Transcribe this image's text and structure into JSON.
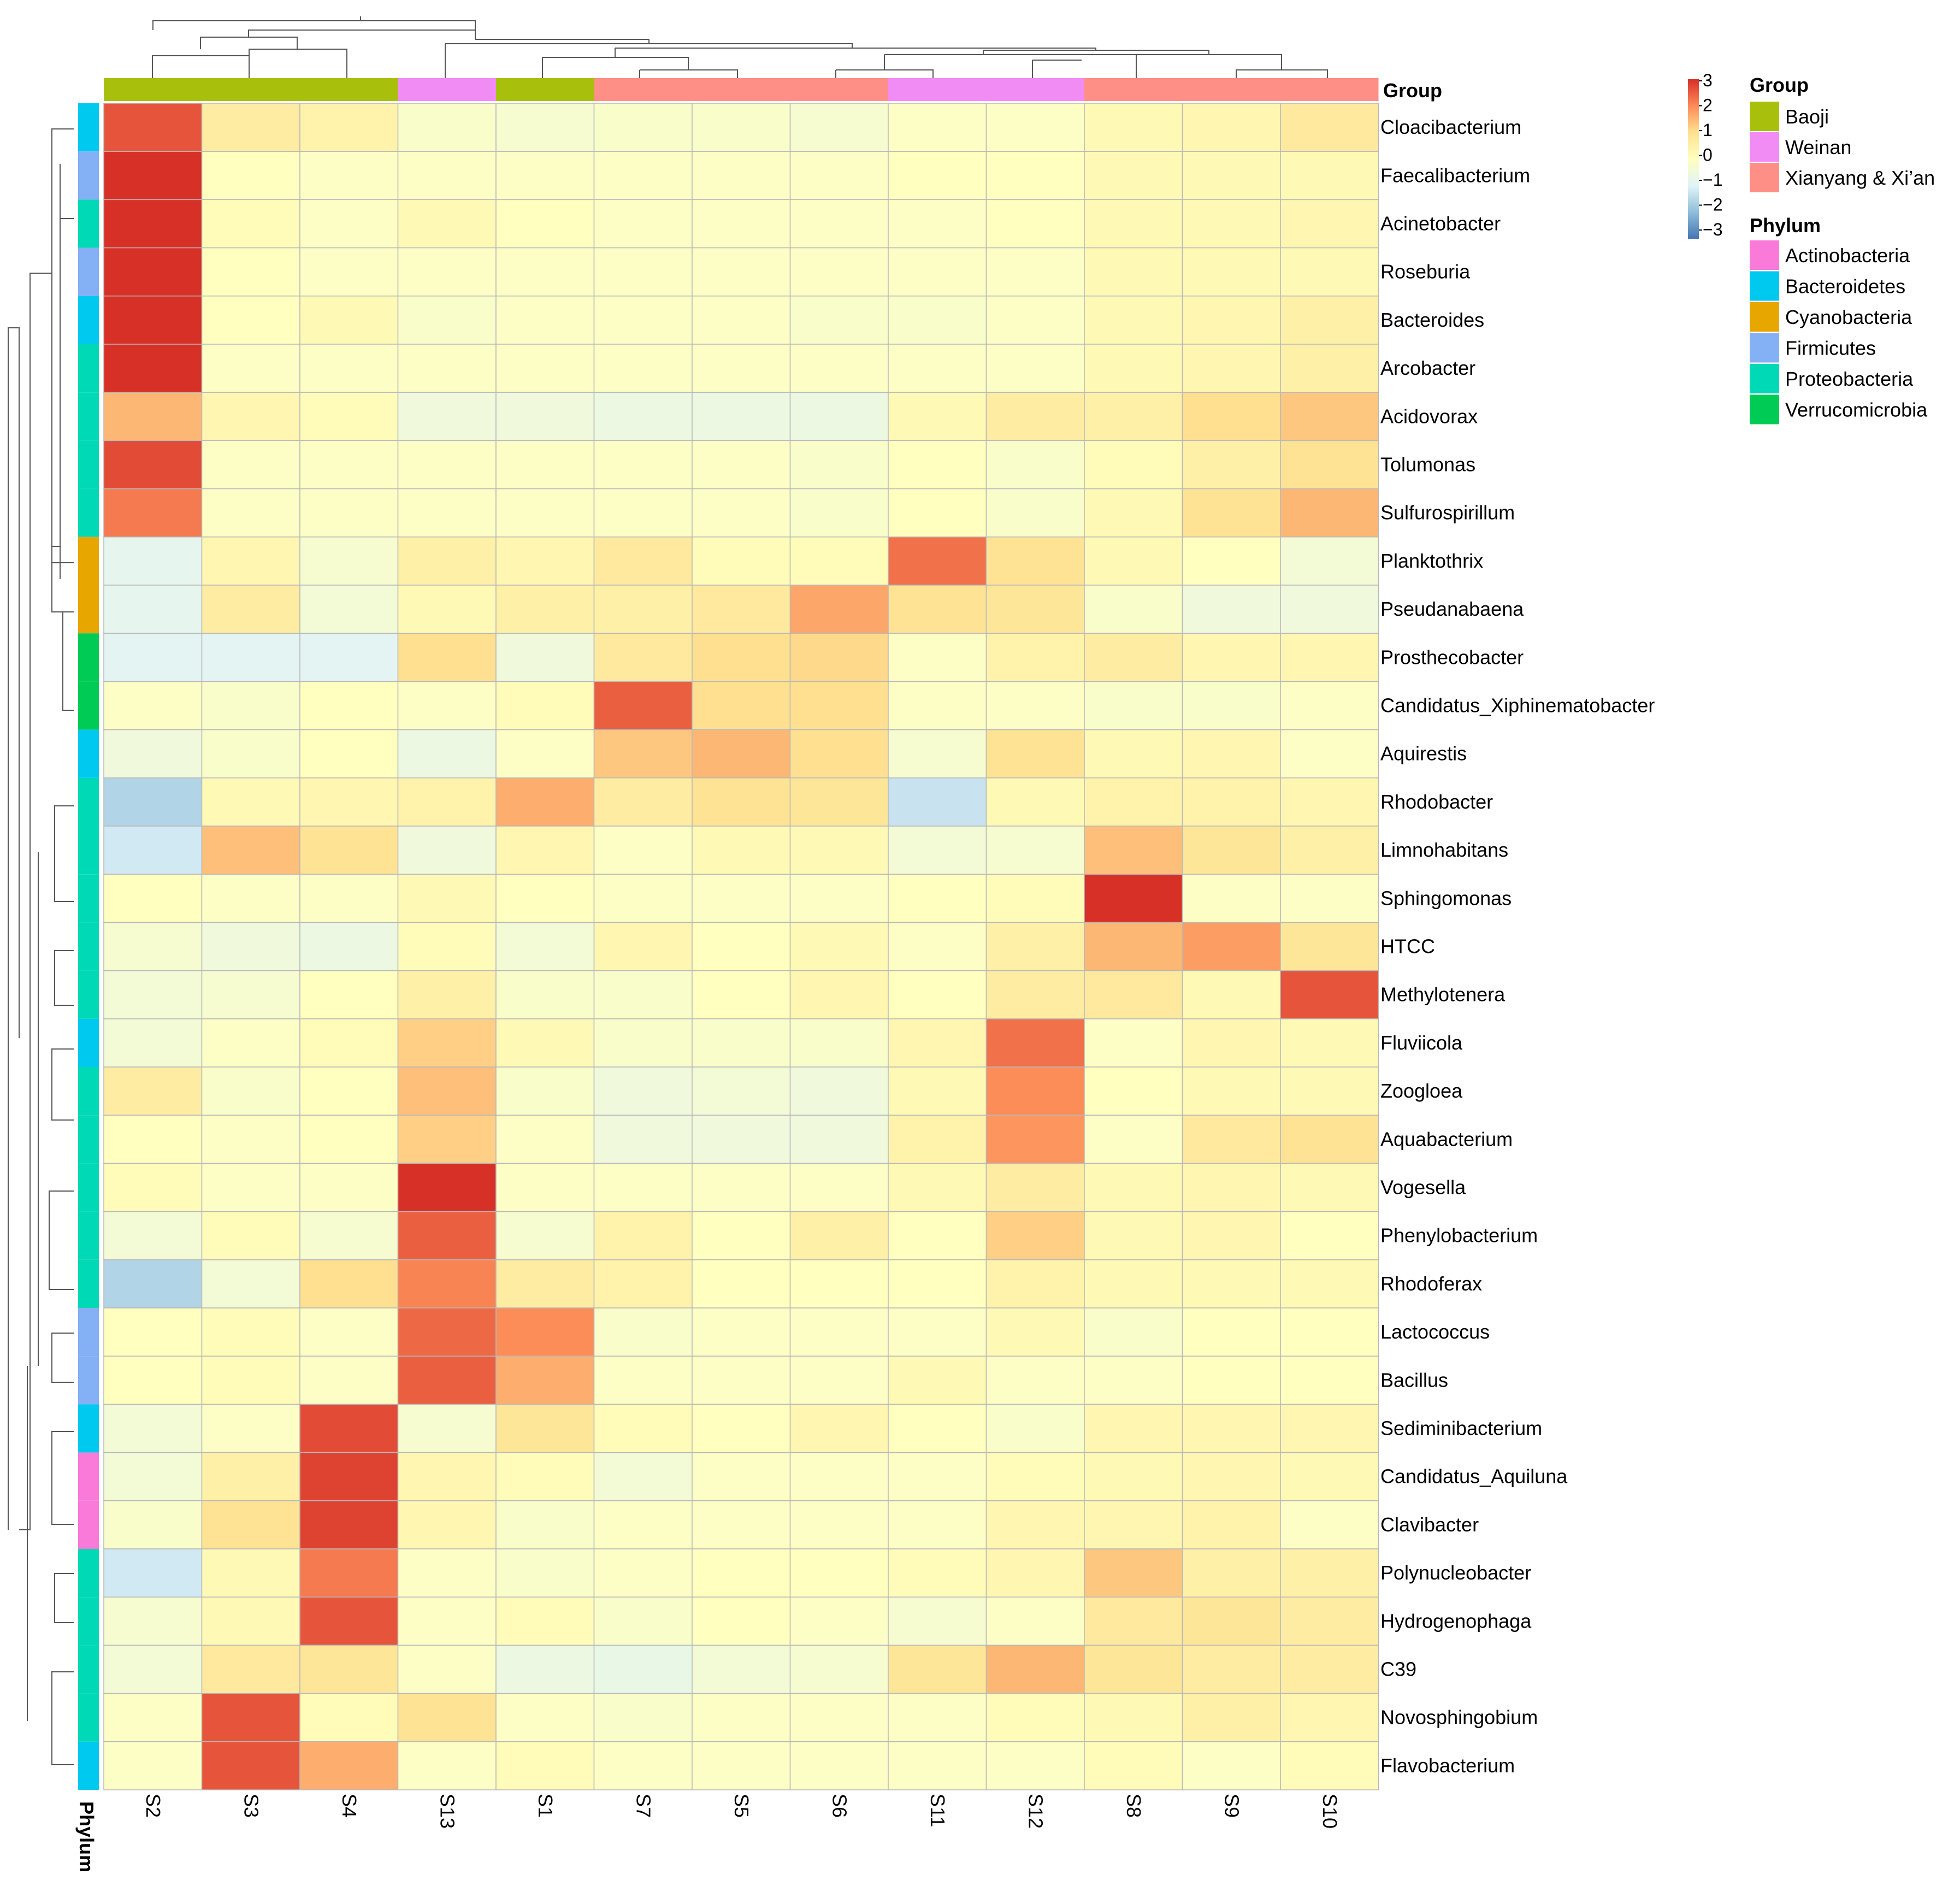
{
  "chart_data": {
    "type": "heatmap",
    "columns": [
      "S2",
      "S3",
      "S4",
      "S13",
      "S1",
      "S7",
      "S5",
      "S6",
      "S11",
      "S12",
      "S8",
      "S9",
      "S10"
    ],
    "column_groups": [
      "Baoji",
      "Baoji",
      "Baoji",
      "Weinan",
      "Baoji",
      "Xianyang & Xi'an",
      "Xianyang & Xi'an",
      "Xianyang & Xi'an",
      "Weinan",
      "Weinan",
      "Xianyang & Xi'an",
      "Xianyang & Xi'an",
      "Xianyang & Xi'an"
    ],
    "rows": [
      "Cloacibacterium",
      "Faecalibacterium",
      "Acinetobacter",
      "Roseburia",
      "Bacteroides",
      "Arcobacter",
      "Acidovorax",
      "Tolumonas",
      "Sulfurospirillum",
      "Planktothrix",
      "Pseudanabaena",
      "Prosthecobacter",
      "Candidatus_Xiphinematobacter",
      "Aquirestis",
      "Rhodobacter",
      "Limnohabitans",
      "Sphingomonas",
      "HTCC",
      "Methylotenera",
      "Fluviicola",
      "Zoogloea",
      "Aquabacterium",
      "Vogesella",
      "Phenylobacterium",
      "Rhodoferax",
      "Lactococcus",
      "Bacillus",
      "Sediminibacterium",
      "Candidatus_Aquiluna",
      "Clavibacter",
      "Polynucleobacter",
      "Hydrogenophaga",
      "C39",
      "Novosphingobium",
      "Flavobacterium"
    ],
    "row_phylum": [
      "Bacteroidetes",
      "Firmicutes",
      "Proteobacteria",
      "Firmicutes",
      "Bacteroidetes",
      "Proteobacteria",
      "Proteobacteria",
      "Proteobacteria",
      "Proteobacteria",
      "Cyanobacteria",
      "Cyanobacteria",
      "Verrucomicrobia",
      "Verrucomicrobia",
      "Bacteroidetes",
      "Proteobacteria",
      "Proteobacteria",
      "Proteobacteria",
      "Proteobacteria",
      "Proteobacteria",
      "Bacteroidetes",
      "Proteobacteria",
      "Proteobacteria",
      "Proteobacteria",
      "Proteobacteria",
      "Proteobacteria",
      "Firmicutes",
      "Firmicutes",
      "Bacteroidetes",
      "Actinobacteria",
      "Actinobacteria",
      "Proteobacteria",
      "Proteobacteria",
      "Proteobacteria",
      "Proteobacteria",
      "Bacteroidetes"
    ],
    "values": [
      [
        2.6,
        0.6,
        0.4,
        -0.2,
        -0.3,
        -0.2,
        -0.2,
        -0.3,
        -0.1,
        -0.1,
        0.2,
        0.3,
        0.7
      ],
      [
        3.0,
        0.0,
        -0.1,
        -0.1,
        -0.1,
        -0.1,
        -0.1,
        -0.1,
        0.0,
        0.0,
        0.2,
        0.2,
        0.2
      ],
      [
        3.0,
        0.1,
        -0.1,
        0.2,
        0.0,
        -0.1,
        -0.1,
        -0.1,
        -0.1,
        0.0,
        0.2,
        0.2,
        0.3
      ],
      [
        3.0,
        0.0,
        -0.1,
        -0.1,
        -0.1,
        -0.1,
        -0.1,
        -0.1,
        -0.1,
        -0.1,
        0.2,
        0.2,
        0.2
      ],
      [
        3.0,
        0.0,
        0.2,
        -0.2,
        -0.1,
        -0.1,
        -0.1,
        -0.2,
        -0.2,
        -0.1,
        0.2,
        0.3,
        0.5
      ],
      [
        3.0,
        -0.1,
        -0.1,
        -0.1,
        -0.1,
        -0.1,
        -0.1,
        -0.1,
        -0.1,
        -0.1,
        0.2,
        0.3,
        0.5
      ],
      [
        1.5,
        0.3,
        0.1,
        -0.5,
        -0.5,
        -0.6,
        -0.6,
        -0.6,
        0.2,
        0.6,
        0.5,
        1.0,
        1.3
      ],
      [
        2.7,
        -0.1,
        -0.1,
        -0.1,
        -0.1,
        -0.1,
        -0.1,
        -0.2,
        0.0,
        -0.2,
        0.1,
        0.5,
        0.9
      ],
      [
        2.2,
        -0.1,
        -0.1,
        -0.1,
        -0.1,
        -0.1,
        -0.1,
        -0.2,
        0.0,
        -0.2,
        0.2,
        0.9,
        1.5
      ],
      [
        -0.8,
        0.3,
        -0.3,
        0.5,
        0.3,
        0.7,
        0.1,
        0.1,
        2.3,
        0.9,
        0.2,
        0.0,
        -0.4
      ],
      [
        -0.8,
        0.6,
        -0.4,
        0.2,
        0.5,
        0.5,
        0.7,
        1.7,
        0.9,
        0.8,
        -0.2,
        -0.5,
        -0.5
      ],
      [
        -0.9,
        -0.9,
        -0.9,
        1.0,
        -0.5,
        0.7,
        1.0,
        1.1,
        -0.1,
        0.4,
        0.6,
        0.3,
        0.3
      ],
      [
        -0.1,
        -0.2,
        0.0,
        -0.1,
        0.1,
        2.5,
        1.0,
        1.0,
        -0.1,
        -0.1,
        -0.2,
        -0.2,
        -0.1
      ],
      [
        -0.5,
        -0.2,
        0.0,
        -0.6,
        -0.1,
        1.3,
        1.5,
        1.0,
        -0.3,
        0.9,
        0.2,
        0.3,
        -0.1
      ],
      [
        -1.6,
        0.2,
        0.3,
        0.4,
        1.6,
        0.6,
        0.9,
        0.8,
        -1.3,
        0.2,
        0.4,
        0.4,
        0.3
      ],
      [
        -1.2,
        1.4,
        0.9,
        -0.5,
        0.3,
        -0.1,
        0.2,
        0.2,
        -0.4,
        -0.3,
        1.4,
        0.8,
        0.5
      ],
      [
        0.0,
        -0.1,
        -0.1,
        0.2,
        0.0,
        -0.1,
        -0.1,
        -0.1,
        0.0,
        0.1,
        3.0,
        -0.1,
        -0.1
      ],
      [
        -0.3,
        -0.5,
        -0.6,
        0.1,
        -0.4,
        0.3,
        0.0,
        0.2,
        -0.1,
        0.5,
        1.5,
        1.8,
        0.8
      ],
      [
        -0.4,
        -0.3,
        0.0,
        0.5,
        -0.2,
        -0.2,
        0.0,
        0.3,
        0.0,
        0.6,
        0.7,
        0.2,
        2.6
      ],
      [
        -0.4,
        -0.1,
        0.1,
        1.2,
        0.2,
        -0.2,
        -0.2,
        -0.2,
        0.3,
        2.3,
        -0.1,
        0.3,
        0.2
      ],
      [
        0.6,
        -0.2,
        0.0,
        1.4,
        -0.2,
        -0.5,
        -0.4,
        -0.5,
        0.2,
        2.0,
        0.0,
        0.2,
        0.2
      ],
      [
        0.0,
        -0.1,
        0.0,
        1.2,
        -0.1,
        -0.5,
        -0.5,
        -0.5,
        0.4,
        1.9,
        -0.1,
        0.7,
        0.9
      ],
      [
        0.1,
        -0.1,
        -0.1,
        3.0,
        -0.1,
        -0.1,
        -0.1,
        -0.1,
        0.2,
        0.6,
        0.2,
        0.3,
        0.2
      ],
      [
        -0.4,
        0.1,
        -0.3,
        2.5,
        -0.3,
        0.4,
        0.0,
        0.5,
        0.0,
        1.2,
        0.2,
        0.3,
        0.0
      ],
      [
        -1.6,
        -0.4,
        1.0,
        2.1,
        0.6,
        0.4,
        0.0,
        0.0,
        0.0,
        0.4,
        0.2,
        0.2,
        0.2
      ],
      [
        0.0,
        0.1,
        -0.1,
        2.4,
        2.0,
        -0.2,
        -0.1,
        -0.1,
        -0.1,
        0.2,
        -0.2,
        0.0,
        0.0
      ],
      [
        0.0,
        0.1,
        -0.1,
        2.5,
        1.6,
        -0.1,
        -0.1,
        -0.1,
        0.2,
        -0.1,
        -0.1,
        0.0,
        0.0
      ],
      [
        -0.4,
        -0.1,
        2.7,
        -0.3,
        0.8,
        0.1,
        0.0,
        0.3,
        0.0,
        -0.2,
        0.3,
        0.3,
        0.3
      ],
      [
        -0.4,
        0.5,
        2.8,
        0.3,
        0.1,
        -0.4,
        -0.1,
        -0.1,
        -0.1,
        0.1,
        0.2,
        0.3,
        0.2
      ],
      [
        -0.2,
        0.9,
        2.8,
        0.3,
        -0.2,
        -0.1,
        -0.1,
        -0.1,
        -0.1,
        0.3,
        0.3,
        0.4,
        -0.1
      ],
      [
        -1.2,
        0.2,
        2.2,
        -0.1,
        -0.2,
        -0.1,
        0.0,
        0.0,
        0.1,
        0.3,
        1.3,
        0.5,
        0.5
      ],
      [
        -0.3,
        0.2,
        2.6,
        -0.1,
        0.1,
        -0.2,
        0.0,
        -0.1,
        -0.3,
        -0.1,
        0.7,
        0.8,
        0.6
      ],
      [
        -0.4,
        0.7,
        0.8,
        -0.1,
        -0.6,
        -0.7,
        -0.4,
        -0.3,
        0.8,
        1.5,
        0.8,
        0.6,
        0.6
      ],
      [
        -0.1,
        2.6,
        0.1,
        0.9,
        -0.1,
        -0.2,
        -0.1,
        -0.1,
        -0.1,
        0.1,
        0.2,
        0.5,
        0.3
      ],
      [
        -0.1,
        2.6,
        1.6,
        -0.1,
        0.1,
        -0.1,
        -0.1,
        -0.1,
        -0.1,
        -0.1,
        0.1,
        -0.1,
        0.1
      ]
    ],
    "color_scale": {
      "min": -3,
      "max": 3,
      "ticks": [
        "3",
        "2",
        "1",
        "0",
        "−1",
        "−2",
        "−3"
      ],
      "colors": [
        "#4575b4",
        "#91bfdb",
        "#e0f3f8",
        "#ffffbf",
        "#fee090",
        "#fc8d59",
        "#d73027"
      ]
    },
    "group_legend": {
      "title": "Group",
      "entries": [
        {
          "label": "Baoji",
          "color": "#a8c00b"
        },
        {
          "label": "Weinan",
          "color": "#f28cf5"
        },
        {
          "label": "Xianyang & Xi’an",
          "color": "#fd8f86"
        }
      ]
    },
    "phylum_legend": {
      "title": "Phylum",
      "entries": [
        {
          "label": "Actinobacteria",
          "color": "#f97ad9"
        },
        {
          "label": "Bacteroidetes",
          "color": "#00c9f0"
        },
        {
          "label": "Cyanobacteria",
          "color": "#e8a600"
        },
        {
          "label": "Firmicutes",
          "color": "#84b0f5"
        },
        {
          "label": "Proteobacteria",
          "color": "#00d9b5"
        },
        {
          "label": "Verrucomicrobia",
          "color": "#00cc55"
        }
      ]
    },
    "group_annotation_label": "Group",
    "phylum_annotation_label": "Phylum"
  }
}
